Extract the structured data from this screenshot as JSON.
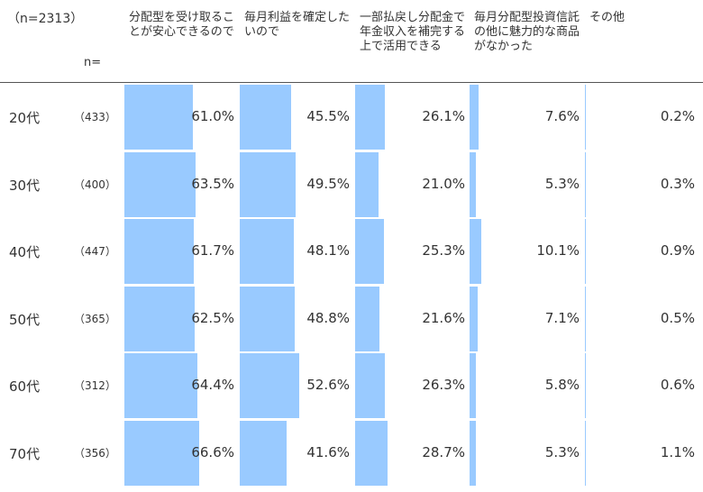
{
  "sample_size": "（n=2313）",
  "n_label": "n=",
  "chart_data": {
    "type": "table",
    "columns": [
      "分配型を受け取ることが安心できるので",
      "毎月利益を確定したいので",
      "一部払戻し分配金で年金収入を補完する上で活用できる",
      "毎月分配型投資信託の他に魅力的な商品がなかった",
      "その他"
    ],
    "rows": [
      {
        "label": "20代",
        "n": "（433）",
        "values": [
          61.0,
          45.5,
          26.1,
          7.6,
          0.2
        ],
        "value_labels": [
          "61.0%",
          "45.5%",
          "26.1%",
          "7.6%",
          "0.2%"
        ]
      },
      {
        "label": "30代",
        "n": "（400）",
        "values": [
          63.5,
          49.5,
          21.0,
          5.3,
          0.3
        ],
        "value_labels": [
          "63.5%",
          "49.5%",
          "21.0%",
          "5.3%",
          "0.3%"
        ]
      },
      {
        "label": "40代",
        "n": "（447）",
        "values": [
          61.7,
          48.1,
          25.3,
          10.1,
          0.9
        ],
        "value_labels": [
          "61.7%",
          "48.1%",
          "25.3%",
          "10.1%",
          "0.9%"
        ]
      },
      {
        "label": "50代",
        "n": "（365）",
        "values": [
          62.5,
          48.8,
          21.6,
          7.1,
          0.5
        ],
        "value_labels": [
          "62.5%",
          "48.8%",
          "21.6%",
          "7.1%",
          "0.5%"
        ]
      },
      {
        "label": "60代",
        "n": "（312）",
        "values": [
          64.4,
          52.6,
          26.3,
          5.8,
          0.6
        ],
        "value_labels": [
          "64.4%",
          "52.6%",
          "26.3%",
          "5.8%",
          "0.6%"
        ]
      },
      {
        "label": "70代",
        "n": "（356）",
        "values": [
          66.6,
          41.6,
          28.7,
          5.3,
          1.1
        ],
        "value_labels": [
          "66.6%",
          "41.6%",
          "28.7%",
          "5.3%",
          "1.1%"
        ]
      }
    ],
    "value_max": 100,
    "bar_color": "#99caff"
  }
}
